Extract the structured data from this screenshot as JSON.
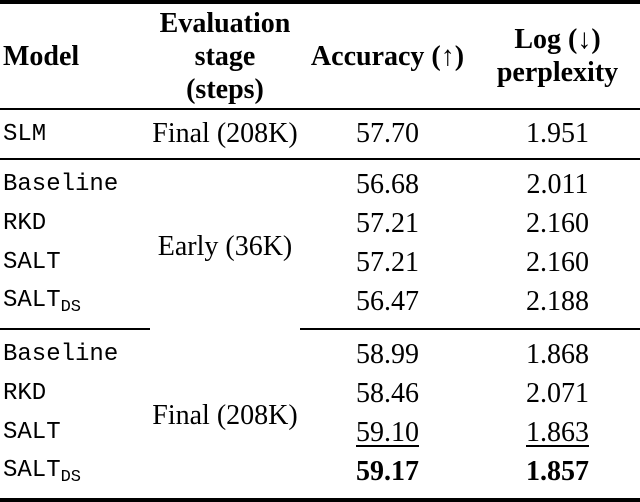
{
  "page": {
    "background_color": "#ffffff",
    "text_color": "#000000"
  },
  "table": {
    "header": {
      "model": "Model",
      "stage": "Evaluation\nstage\n(steps)",
      "accuracy": "Accuracy (↑)",
      "log_perplexity": "Log (↓)\nperplexity"
    },
    "slm_row": {
      "model": "SLM",
      "stage": "Final (208K)",
      "accuracy": "57.70",
      "log_perplexity": "1.951"
    },
    "sections": [
      {
        "stage": "Early (36K)",
        "rows": [
          {
            "model": "Baseline",
            "accuracy": "56.68",
            "log_perplexity": "2.011"
          },
          {
            "model": "RKD",
            "accuracy": "57.21",
            "log_perplexity": "2.160"
          },
          {
            "model": "SALT",
            "accuracy": "57.21",
            "log_perplexity": "2.160"
          },
          {
            "model": "SALT",
            "model_subscript": "DS",
            "accuracy": "56.47",
            "log_perplexity": "2.188"
          }
        ]
      },
      {
        "stage": "Final (208K)",
        "rows": [
          {
            "model": "Baseline",
            "accuracy": "58.99",
            "log_perplexity": "1.868"
          },
          {
            "model": "RKD",
            "accuracy": "58.46",
            "log_perplexity": "2.071"
          },
          {
            "model": "SALT",
            "accuracy": "59.10",
            "log_perplexity": "1.863",
            "emphasis": "underline"
          },
          {
            "model": "SALT",
            "model_subscript": "DS",
            "accuracy": "59.17",
            "log_perplexity": "1.857",
            "emphasis": "bold"
          }
        ]
      }
    ]
  }
}
